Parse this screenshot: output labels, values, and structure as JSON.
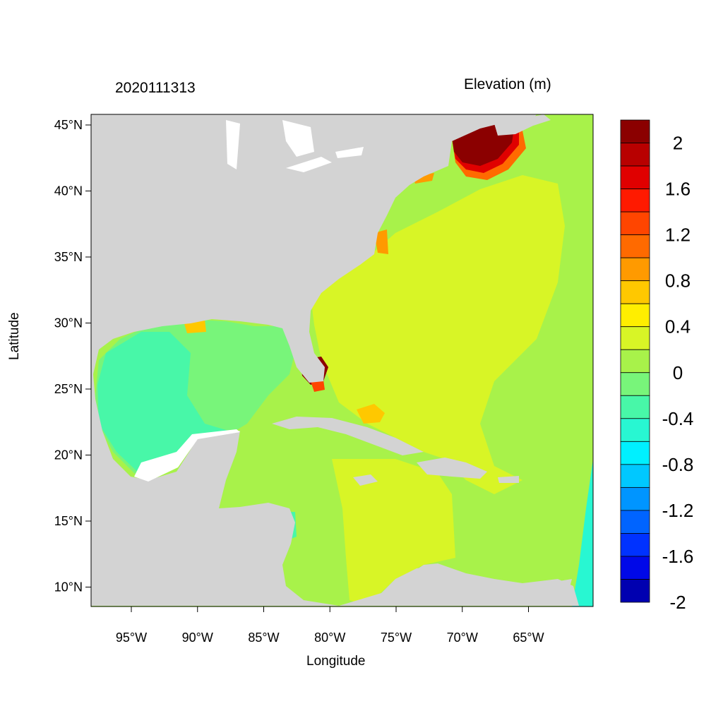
{
  "title_left": "2020111313",
  "title_right": "Elevation (m)",
  "xlabel": "Longitude",
  "ylabel": "Latitude",
  "colors": {
    "land": "#d3d3d3",
    "frame": "#000000"
  },
  "x_ticks": [
    {
      "value": -95,
      "label": "95°W"
    },
    {
      "value": -90,
      "label": "90°W"
    },
    {
      "value": -85,
      "label": "85°W"
    },
    {
      "value": -80,
      "label": "80°W"
    },
    {
      "value": -75,
      "label": "75°W"
    },
    {
      "value": -70,
      "label": "70°W"
    },
    {
      "value": -65,
      "label": "65°W"
    }
  ],
  "y_ticks": [
    {
      "value": 45,
      "label": "45°N"
    },
    {
      "value": 40,
      "label": "40°N"
    },
    {
      "value": 35,
      "label": "35°N"
    },
    {
      "value": 30,
      "label": "30°N"
    },
    {
      "value": 25,
      "label": "25°N"
    },
    {
      "value": 20,
      "label": "20°N"
    },
    {
      "value": 15,
      "label": "15°N"
    },
    {
      "value": 10,
      "label": "10°N"
    }
  ],
  "colorbar": {
    "colors": [
      "#8b0000",
      "#b80000",
      "#e00000",
      "#ff1a00",
      "#ff4500",
      "#ff6a00",
      "#ff9a00",
      "#ffc800",
      "#ffee00",
      "#d8f526",
      "#a8f24a",
      "#78f57a",
      "#48f7a8",
      "#28f7d2",
      "#00f0ff",
      "#00c8ff",
      "#0095ff",
      "#0064ff",
      "#0032ff",
      "#0008e8",
      "#0000b0"
    ],
    "labels": [
      "2",
      "1.6",
      "1.2",
      "0.8",
      "0.4",
      "0",
      "-0.4",
      "-0.8",
      "-1.2",
      "-1.6",
      "-2"
    ]
  }
}
